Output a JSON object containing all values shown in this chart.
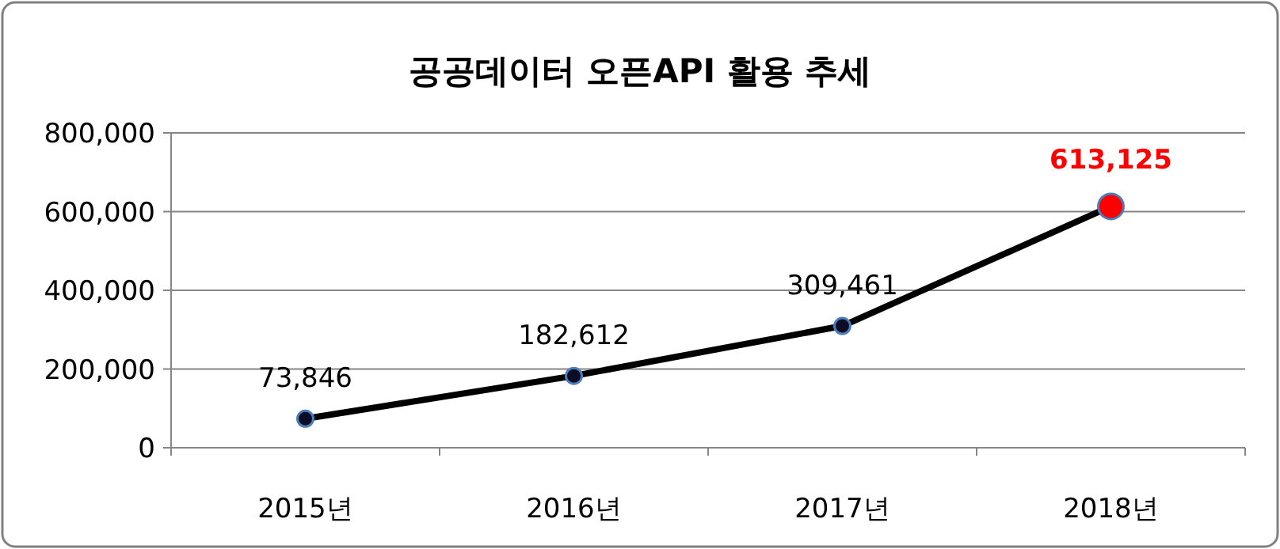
{
  "chart_data": {
    "type": "line",
    "title": "공공데이터 오픈API 활용 추세",
    "categories": [
      "2015년",
      "2016년",
      "2017년",
      "2018년"
    ],
    "series": [
      {
        "color": "#000000",
        "colors": [
          "#0d0d26",
          "#0d0d26",
          "#0d0d26",
          "#ff0000"
        ],
        "values": [
          73846,
          182612,
          309461,
          613125
        ],
        "value_labels": [
          "73,846",
          "182,612",
          "309,461",
          "613,125"
        ]
      }
    ],
    "ylim": [
      0,
      800000
    ],
    "yticks": [
      {
        "value": 0,
        "label": "0"
      },
      {
        "value": 200000,
        "label": "200,000"
      },
      {
        "value": 400000,
        "label": "400,000"
      },
      {
        "value": 600000,
        "label": "600,000"
      },
      {
        "value": 800000,
        "label": "800,000"
      }
    ],
    "grid": "y",
    "marker": "circle",
    "line_style": "solid"
  }
}
